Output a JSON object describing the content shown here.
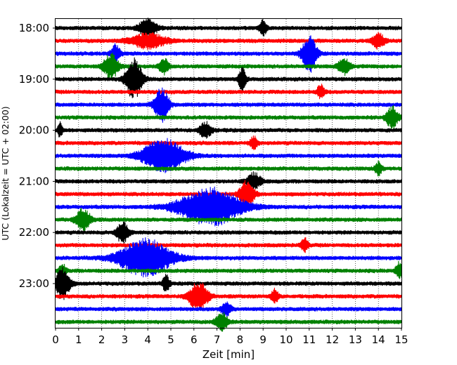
{
  "chart_data": {
    "type": "line",
    "title": "",
    "xlabel": "Zeit  [min]",
    "ylabel": "UTC (Lokalzeit = UTC + 02:00)",
    "xlim": [
      0,
      15
    ],
    "x_ticks": [
      "0",
      "1",
      "2",
      "3",
      "4",
      "5",
      "6",
      "7",
      "8",
      "9",
      "10",
      "11",
      "12",
      "13",
      "14",
      "15"
    ],
    "y_ticks": [
      "18:00",
      "19:00",
      "20:00",
      "21:00",
      "22:00",
      "23:00"
    ],
    "grid": "vertical-dotted",
    "row_interval_min": 15,
    "row_colors": [
      "#000000",
      "#ff0000",
      "#0000ff",
      "#008000"
    ],
    "rows": [
      {
        "time": "18:00",
        "events": [
          {
            "minute": 4.0,
            "amp": 1.4,
            "dur": 0.8
          },
          {
            "minute": 9.0,
            "amp": 1.3,
            "dur": 0.3
          }
        ]
      },
      {
        "time": "18:15",
        "events": [
          {
            "minute": 4.0,
            "amp": 1.2,
            "dur": 1.5
          },
          {
            "minute": 14.0,
            "amp": 1.3,
            "dur": 0.5
          }
        ]
      },
      {
        "time": "18:30",
        "events": [
          {
            "minute": 2.6,
            "amp": 1.4,
            "dur": 0.4
          },
          {
            "minute": 11.0,
            "amp": 3.2,
            "dur": 0.6
          }
        ]
      },
      {
        "time": "18:45",
        "events": [
          {
            "minute": 2.4,
            "amp": 2.2,
            "dur": 0.6
          },
          {
            "minute": 4.7,
            "amp": 1.3,
            "dur": 0.4
          },
          {
            "minute": 12.5,
            "amp": 1.4,
            "dur": 0.5
          }
        ]
      },
      {
        "time": "19:00",
        "events": [
          {
            "minute": 3.4,
            "amp": 3.4,
            "dur": 0.7
          },
          {
            "minute": 8.1,
            "amp": 2.0,
            "dur": 0.3
          }
        ]
      },
      {
        "time": "19:15",
        "events": [
          {
            "minute": 11.5,
            "amp": 1.2,
            "dur": 0.3
          }
        ]
      },
      {
        "time": "19:30",
        "events": [
          {
            "minute": 4.6,
            "amp": 2.8,
            "dur": 0.6
          }
        ]
      },
      {
        "time": "19:45",
        "events": [
          {
            "minute": 14.6,
            "amp": 1.8,
            "dur": 0.5
          }
        ]
      },
      {
        "time": "20:00",
        "events": [
          {
            "minute": 0.2,
            "amp": 1.3,
            "dur": 0.2
          },
          {
            "minute": 6.5,
            "amp": 1.3,
            "dur": 0.5
          }
        ]
      },
      {
        "time": "20:15",
        "events": [
          {
            "minute": 8.6,
            "amp": 1.1,
            "dur": 0.3
          }
        ]
      },
      {
        "time": "20:30",
        "events": [
          {
            "minute": 4.7,
            "amp": 2.8,
            "dur": 1.8
          }
        ]
      },
      {
        "time": "20:45",
        "events": [
          {
            "minute": 14.0,
            "amp": 1.1,
            "dur": 0.3
          }
        ]
      },
      {
        "time": "21:00",
        "events": [
          {
            "minute": 8.6,
            "amp": 1.4,
            "dur": 0.6
          }
        ]
      },
      {
        "time": "21:15",
        "events": [
          {
            "minute": 8.3,
            "amp": 2.2,
            "dur": 0.6
          }
        ]
      },
      {
        "time": "21:30",
        "events": [
          {
            "minute": 6.7,
            "amp": 3.2,
            "dur": 2.6
          }
        ]
      },
      {
        "time": "21:45",
        "events": [
          {
            "minute": 1.2,
            "amp": 1.9,
            "dur": 0.6
          }
        ]
      },
      {
        "time": "22:00",
        "events": [
          {
            "minute": 2.9,
            "amp": 1.8,
            "dur": 0.5
          }
        ]
      },
      {
        "time": "22:15",
        "events": [
          {
            "minute": 10.8,
            "amp": 1.1,
            "dur": 0.3
          }
        ]
      },
      {
        "time": "22:30",
        "events": [
          {
            "minute": 3.9,
            "amp": 3.2,
            "dur": 2.2
          }
        ]
      },
      {
        "time": "22:45",
        "events": [
          {
            "minute": 0.3,
            "amp": 1.2,
            "dur": 0.3
          },
          {
            "minute": 14.9,
            "amp": 1.4,
            "dur": 0.3
          }
        ]
      },
      {
        "time": "23:00",
        "events": [
          {
            "minute": 0.3,
            "amp": 2.8,
            "dur": 0.6
          },
          {
            "minute": 4.8,
            "amp": 1.4,
            "dur": 0.3
          }
        ]
      },
      {
        "time": "23:15",
        "events": [
          {
            "minute": 6.2,
            "amp": 2.4,
            "dur": 0.8
          },
          {
            "minute": 9.5,
            "amp": 1.2,
            "dur": 0.3
          }
        ]
      },
      {
        "time": "23:30",
        "events": [
          {
            "minute": 7.4,
            "amp": 1.2,
            "dur": 0.4
          }
        ]
      },
      {
        "time": "23:45",
        "events": [
          {
            "minute": 7.2,
            "amp": 1.6,
            "dur": 0.5
          }
        ]
      }
    ]
  }
}
